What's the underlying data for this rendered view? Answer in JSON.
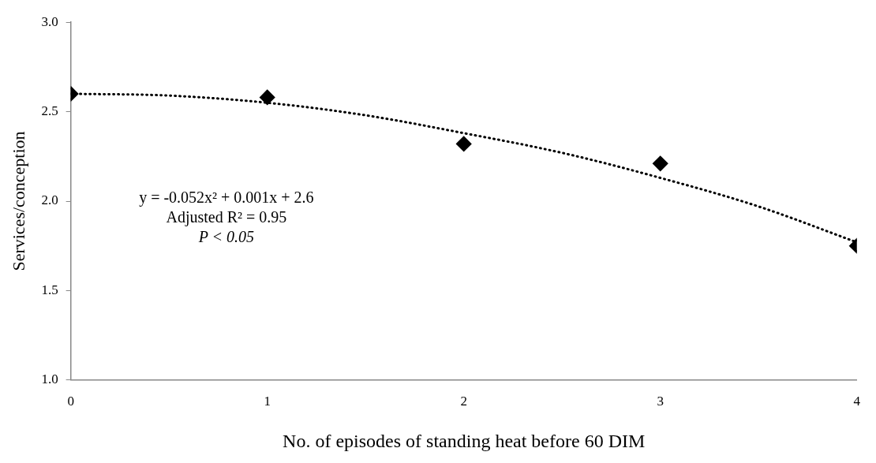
{
  "chart_data": {
    "type": "scatter",
    "xlabel": "No. of episodes of standing heat before 60 DIM",
    "ylabel": "Services/conception",
    "x": [
      0,
      1,
      2,
      3,
      4
    ],
    "series": [
      {
        "type": "scatter",
        "color": "#000000",
        "marker": "diamond",
        "values": [
          2.6,
          2.58,
          2.32,
          2.21,
          1.75
        ]
      },
      {
        "type": "line",
        "color": "#000000",
        "marker": "none",
        "line_style": "dotted",
        "x": [
          0,
          0.5,
          1,
          1.5,
          2,
          2.5,
          3,
          3.5,
          4
        ],
        "values": [
          2.6,
          2.59,
          2.55,
          2.48,
          2.38,
          2.27,
          2.13,
          1.97,
          1.77
        ]
      }
    ],
    "xlim": [
      0,
      4
    ],
    "xticks": [
      0,
      1,
      2,
      3,
      4
    ],
    "ylim": [
      1,
      3
    ],
    "yticks": [
      {
        "value": 1,
        "label": "1.0"
      },
      1.5,
      {
        "value": 2,
        "label": "2.0"
      },
      2.5,
      {
        "value": 3,
        "label": "3.0"
      }
    ],
    "annotations": [
      "y = -0.052x² + 0.001x + 2.6",
      "Adjusted R² = 0.95",
      "P < 0.05"
    ],
    "grid": false,
    "legend": false
  }
}
